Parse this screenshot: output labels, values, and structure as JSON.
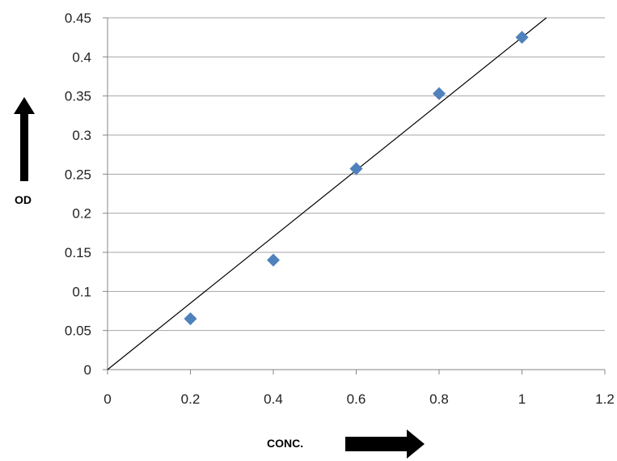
{
  "chart_data": {
    "type": "scatter",
    "title": "",
    "xlabel": "CONC.",
    "ylabel": "OD",
    "xlim": [
      0,
      1.2
    ],
    "ylim": [
      0,
      0.45
    ],
    "x_ticks": [
      "0",
      "0.2",
      "0.4",
      "0.6",
      "0.8",
      "1",
      "1.2"
    ],
    "y_ticks": [
      "0",
      "0.05",
      "0.1",
      "0.15",
      "0.2",
      "0.25",
      "0.3",
      "0.35",
      "0.4",
      "0.45"
    ],
    "grid": "horizontal",
    "series": [
      {
        "x": [
          0.2,
          0.4,
          0.6,
          0.8,
          1.0
        ],
        "y": [
          0.065,
          0.14,
          0.257,
          0.353,
          0.425
        ],
        "marker": "diamond",
        "color": "#4f81bd"
      }
    ],
    "trendline": {
      "type": "linear",
      "intercept": 0,
      "slope": 0.425,
      "color": "#000000"
    },
    "colors": {
      "gridline": "#a6a6a6",
      "axis": "#868686",
      "arrow": "#000000"
    }
  }
}
